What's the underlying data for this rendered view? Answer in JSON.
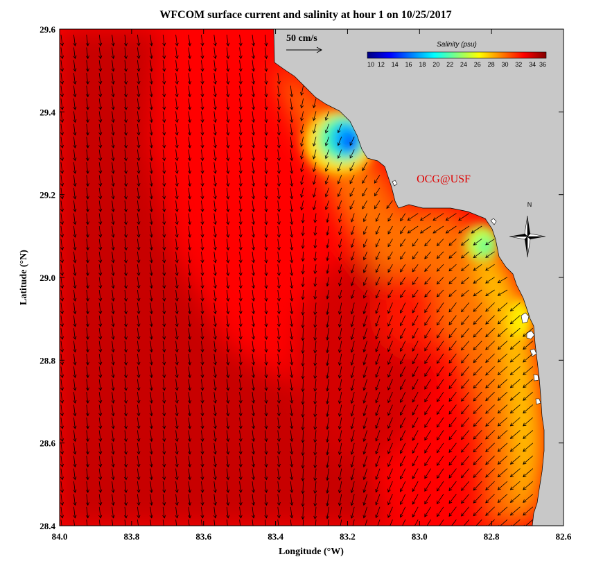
{
  "title": "WFCOM surface current and salinity at hour 1 on 10/25/2017",
  "xlabel": "Longitude (°W)",
  "ylabel": "Latitude (°N)",
  "x_ticks": [
    "84.0",
    "83.8",
    "83.6",
    "83.4",
    "83.2",
    "83.0",
    "82.8",
    "82.6"
  ],
  "y_ticks": [
    "29.6",
    "29.4",
    "29.2",
    "29.0",
    "28.8",
    "28.6",
    "28.4"
  ],
  "lon_range_w": [
    84.0,
    82.6
  ],
  "lat_range_n": [
    28.4,
    29.6
  ],
  "vector_scale": {
    "label": "50 cm/s",
    "speed_cm_s": 50
  },
  "colorbar": {
    "title": "Salinity (psu)",
    "min": 10,
    "max": 36,
    "ticks": [
      "10",
      "12",
      "14",
      "16",
      "18",
      "20",
      "22",
      "24",
      "26",
      "28",
      "30",
      "32",
      "34",
      "36"
    ],
    "colors": [
      "#00007f",
      "#0000ff",
      "#0080ff",
      "#00ffff",
      "#80ff80",
      "#ffff00",
      "#ff8000",
      "#ff0000",
      "#800000"
    ]
  },
  "credit": "OCG@USF",
  "compass": {
    "label": "N"
  },
  "colors": {
    "land": "#c8c8c8",
    "coast": "#000000",
    "credit": "#e00000"
  },
  "chart_data": {
    "type": "heatmap",
    "variable": "salinity",
    "units": "psu",
    "region": {
      "lon_w": [
        84.0,
        82.6
      ],
      "lat_n": [
        28.4,
        29.6
      ]
    },
    "notable_features": [
      {
        "label": "low-salinity plume",
        "lon_w": 83.19,
        "lat_n": 29.31,
        "salinity": 11
      },
      {
        "label": "low-salinity pocket",
        "lon_w": 82.83,
        "lat_n": 29.07,
        "salinity": 21
      }
    ],
    "offshore_salinity": 35,
    "nearshore_salinity": 27
  }
}
